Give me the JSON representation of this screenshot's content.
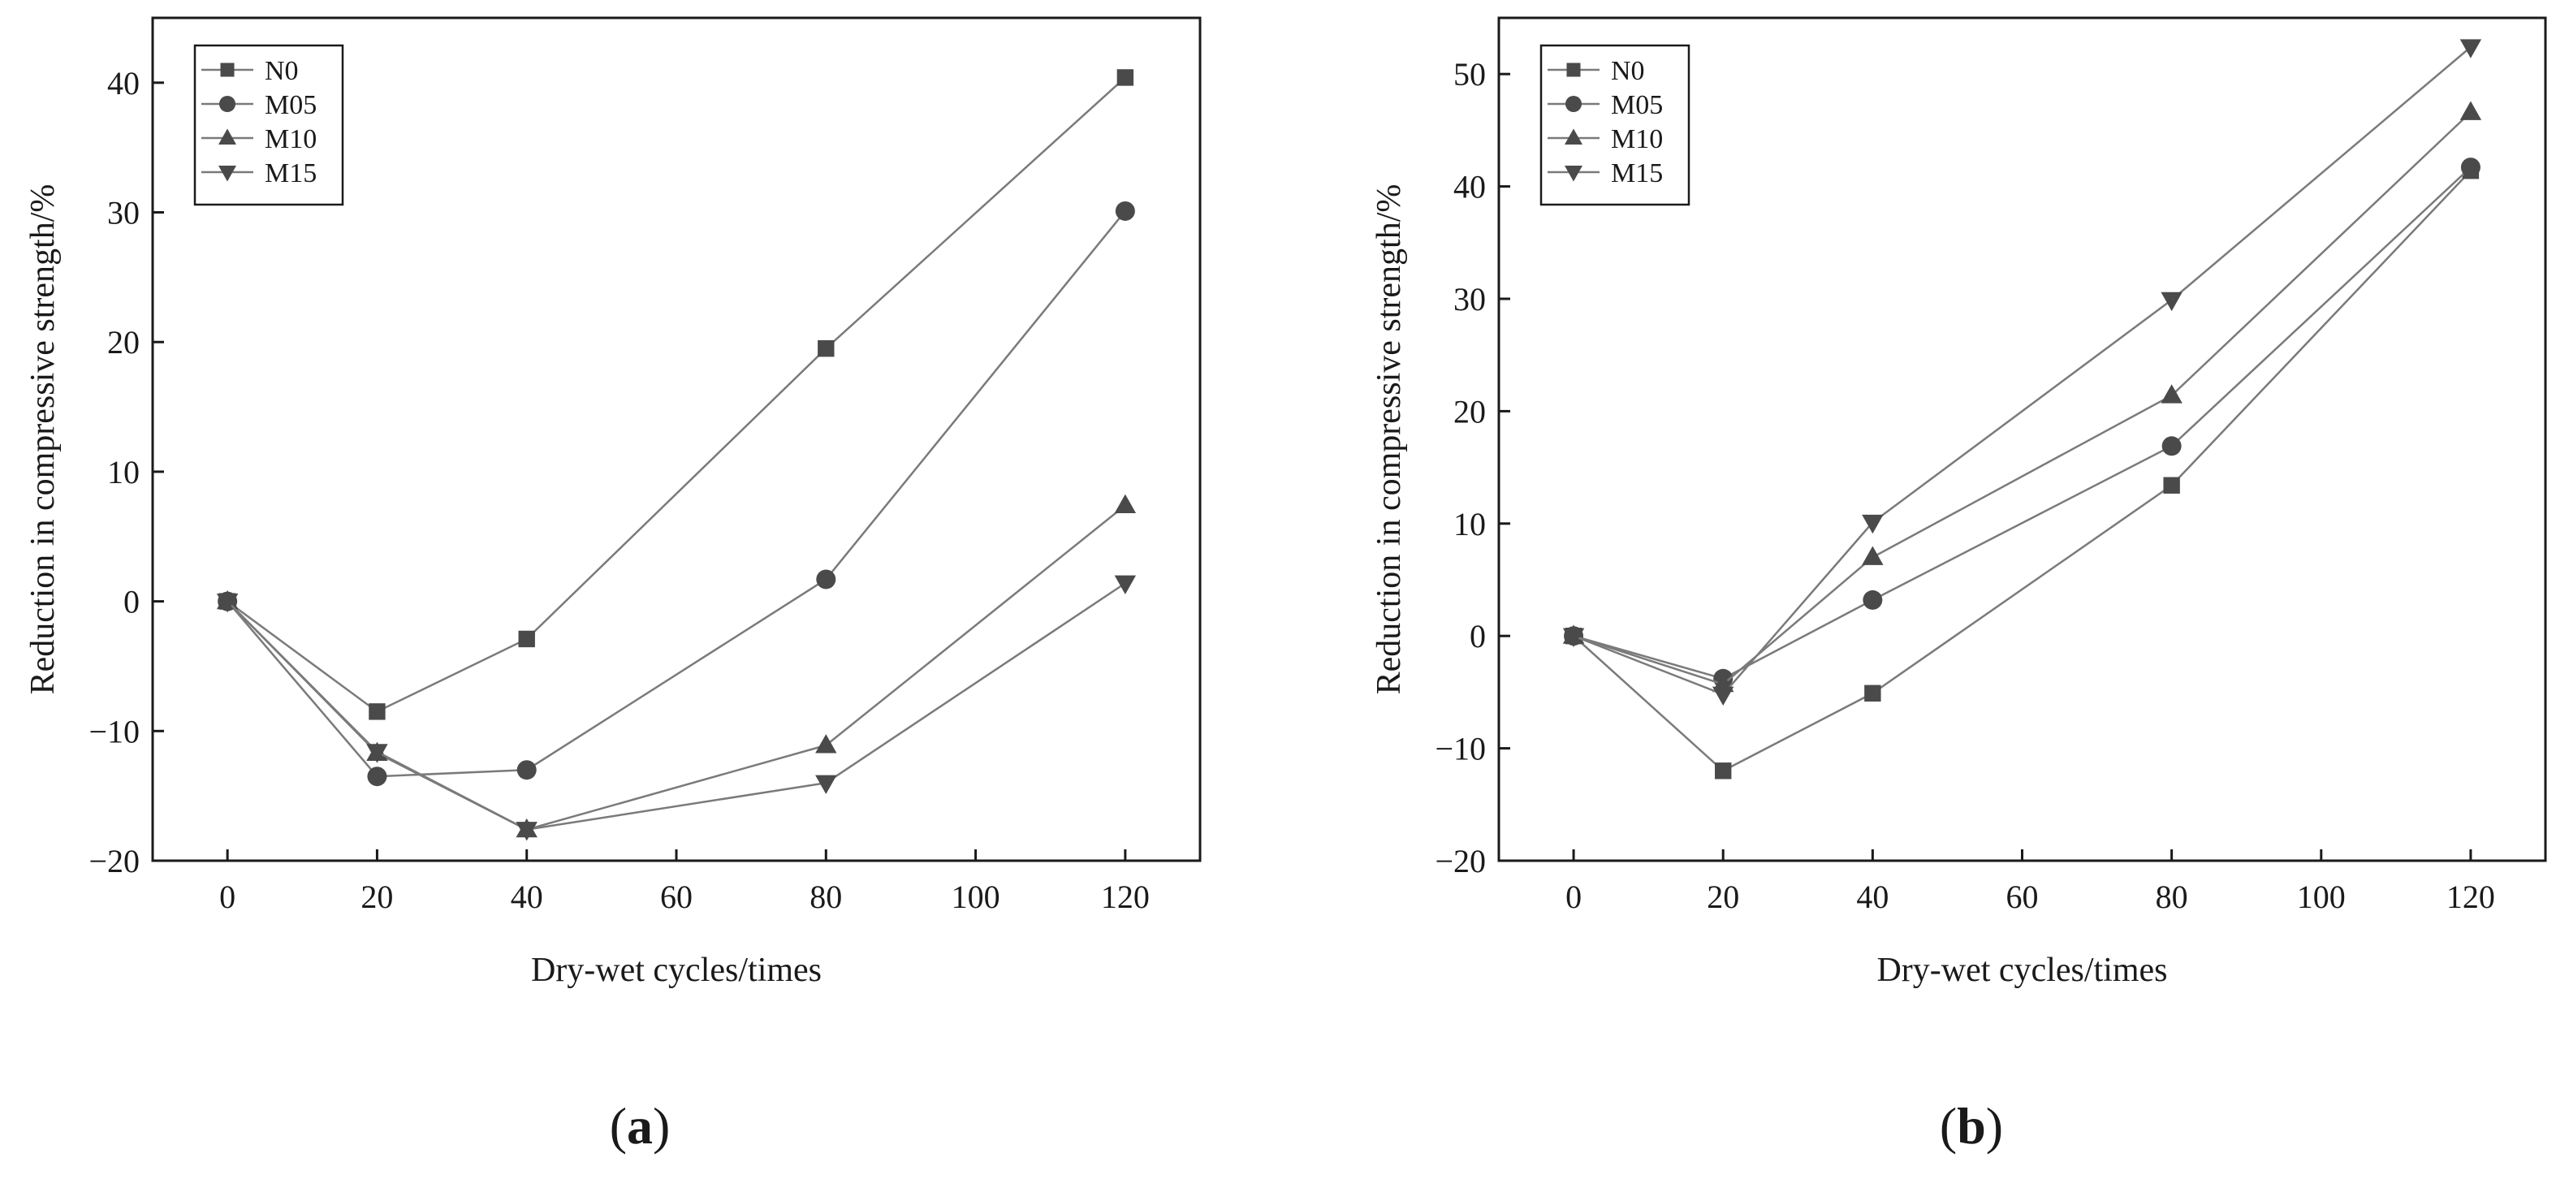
{
  "chart_data": [
    {
      "type": "line",
      "panel": "a",
      "caption_letter": "a",
      "xlabel": "Dry-wet cycles/times",
      "ylabel": "Reduction in compressive strength/%",
      "x": [
        0,
        20,
        40,
        80,
        120
      ],
      "xlim": [
        -10,
        130
      ],
      "ylim": [
        -20,
        45
      ],
      "xticks": [
        0,
        20,
        40,
        60,
        80,
        100,
        120
      ],
      "yticks": [
        -20,
        -10,
        0,
        10,
        20,
        30,
        40
      ],
      "legend_position": "top-left",
      "series": [
        {
          "name": "N0",
          "marker": "square",
          "values": [
            0,
            -8.5,
            -2.9,
            19.5,
            40.4
          ]
        },
        {
          "name": "M05",
          "marker": "circle",
          "values": [
            0,
            -13.5,
            -13.0,
            1.7,
            30.1
          ]
        },
        {
          "name": "M10",
          "marker": "triangle-up",
          "values": [
            0,
            -11.7,
            -17.6,
            -11.1,
            7.4
          ]
        },
        {
          "name": "M15",
          "marker": "triangle-down",
          "values": [
            0,
            -11.6,
            -17.6,
            -14.0,
            1.4
          ]
        }
      ]
    },
    {
      "type": "line",
      "panel": "b",
      "caption_letter": "b",
      "xlabel": "Dry-wet cycles/times",
      "ylabel": "Reduction in compressive strength/%",
      "x": [
        0,
        20,
        40,
        80,
        120
      ],
      "xlim": [
        -10,
        130
      ],
      "ylim": [
        -20,
        55
      ],
      "xticks": [
        0,
        20,
        40,
        60,
        80,
        100,
        120
      ],
      "yticks": [
        -20,
        -10,
        0,
        10,
        20,
        30,
        40,
        50
      ],
      "legend_position": "top-left",
      "series": [
        {
          "name": "N0",
          "marker": "square",
          "values": [
            0,
            -12.0,
            -5.1,
            13.4,
            41.4
          ]
        },
        {
          "name": "M05",
          "marker": "circle",
          "values": [
            0,
            -3.8,
            3.2,
            16.9,
            41.7
          ]
        },
        {
          "name": "M10",
          "marker": "triangle-up",
          "values": [
            0,
            -4.3,
            7.0,
            21.4,
            46.6
          ]
        },
        {
          "name": "M15",
          "marker": "triangle-down",
          "values": [
            0,
            -5.2,
            10.1,
            29.9,
            52.4
          ]
        }
      ]
    }
  ]
}
